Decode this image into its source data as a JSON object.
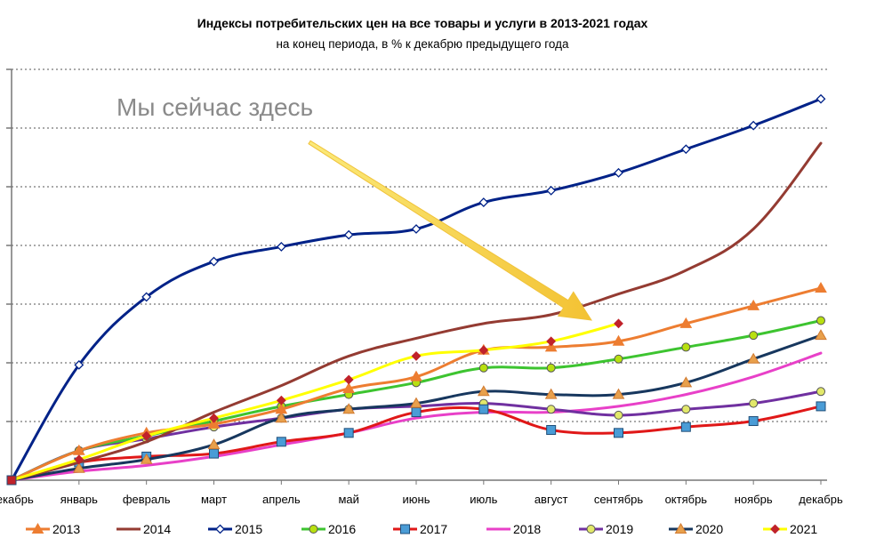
{
  "chart_data": {
    "type": "line",
    "title": "Индексы потребительских цен на все товары и услуги в 2013-2021 годах",
    "subtitle": "на конец периода, в % к декабрю предыдущего года",
    "annotation": "Мы сейчас здесь",
    "categories": [
      "декабрь",
      "январь",
      "февраль",
      "март",
      "апрель",
      "май",
      "июнь",
      "июль",
      "август",
      "сентябрь",
      "октябрь",
      "ноябрь",
      "декабрь"
    ],
    "ylim": [
      100,
      113.9
    ],
    "grid": "horizontal dotted",
    "legend_position": "bottom",
    "series": [
      {
        "name": "2013",
        "color": "#ED7D31",
        "marker": "triangle",
        "values": [
          100,
          101.0,
          101.6,
          101.9,
          102.4,
          103.1,
          103.5,
          104.4,
          104.5,
          104.7,
          105.3,
          105.9,
          106.5
        ]
      },
      {
        "name": "2014",
        "color": "#943B32",
        "marker": "none",
        "values": [
          100,
          100.6,
          101.3,
          102.3,
          103.2,
          104.2,
          104.8,
          105.3,
          105.6,
          106.3,
          107.1,
          108.5,
          111.4
        ]
      },
      {
        "name": "2015",
        "color": "#002288",
        "marker": "diamond",
        "values": [
          100,
          103.9,
          106.2,
          107.4,
          107.9,
          108.3,
          108.5,
          109.4,
          109.8,
          110.4,
          111.2,
          112.0,
          112.9
        ]
      },
      {
        "name": "2016",
        "color": "#3DC430",
        "marker": "circle",
        "values": [
          100,
          101.0,
          101.5,
          102.0,
          102.5,
          102.9,
          103.3,
          103.8,
          103.8,
          104.1,
          104.5,
          104.9,
          105.4
        ]
      },
      {
        "name": "2017",
        "color": "#E01818",
        "marker": "square",
        "values": [
          100,
          100.6,
          100.8,
          100.9,
          101.3,
          101.6,
          102.3,
          102.4,
          101.7,
          101.6,
          101.8,
          102.0,
          102.5
        ]
      },
      {
        "name": "2018",
        "color": "#E840C8",
        "marker": "none",
        "values": [
          100,
          100.3,
          100.5,
          100.8,
          101.2,
          101.6,
          102.1,
          102.3,
          102.3,
          102.5,
          102.9,
          103.5,
          104.3
        ]
      },
      {
        "name": "2019",
        "color": "#7030A0",
        "marker": "circle",
        "values": [
          100,
          101.0,
          101.4,
          101.8,
          102.1,
          102.4,
          102.5,
          102.6,
          102.4,
          102.2,
          102.4,
          102.6,
          103.0
        ]
      },
      {
        "name": "2020",
        "color": "#17375E",
        "marker": "triangle",
        "values": [
          100,
          100.4,
          100.7,
          101.2,
          102.1,
          102.4,
          102.6,
          103.0,
          102.9,
          102.9,
          103.3,
          104.1,
          104.9
        ]
      },
      {
        "name": "2021",
        "color": "#FFFF00",
        "marker": "diamond",
        "markerColor": "#C0222A",
        "values": [
          100,
          100.7,
          101.5,
          102.1,
          102.7,
          103.4,
          104.2,
          104.4,
          104.7,
          105.3,
          null,
          null,
          null
        ]
      }
    ]
  }
}
